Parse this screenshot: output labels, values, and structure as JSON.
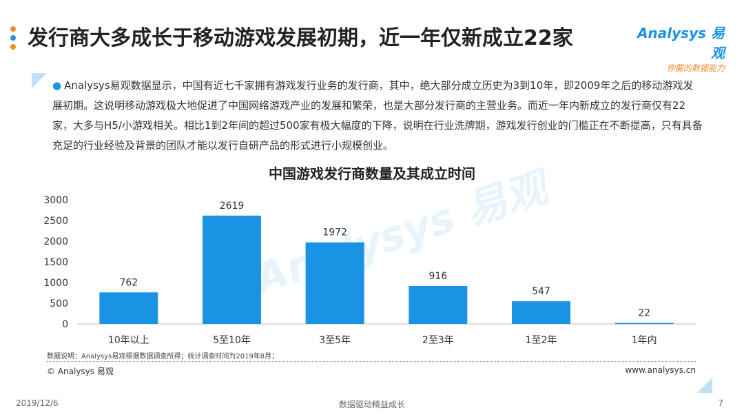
{
  "header": {
    "title": "发行商大多成长于移动游戏发展初期，近一年仅新成立22家",
    "logo_brand": "Analysys 易观",
    "logo_slogan": "你要的数据能力"
  },
  "description": "Analysys易观数据显示，中国有近七千家拥有游戏发行业务的发行商，其中，绝大部分成立历史为3到10年，即2009年之后的移动游戏发展初期。这说明移动游戏极大地促进了中国网络游戏产业的发展和繁荣，也是大部分发行商的主营业务。而近一年内新成立的发行商仅有22家，大多与H5/小游戏相关。相比1到2年间的超过500家有极大幅度的下降，说明在行业洗牌期，游戏发行创业的门槛正在不断提高，只有具备充足的行业经验及背景的团队才能以发行自研产品的形式进行小规模创业。",
  "chart_data": {
    "type": "bar",
    "title": "中国游戏发行商数量及其成立时间",
    "categories": [
      "10年以上",
      "5至10年",
      "3至5年",
      "2至3年",
      "1至2年",
      "1年内"
    ],
    "values": [
      762,
      2619,
      1972,
      916,
      547,
      22
    ],
    "yticks": [
      0,
      500,
      1000,
      1500,
      2000,
      2500,
      3000
    ],
    "ylim": [
      0,
      3000
    ],
    "color": "#1a93e5",
    "grid": false
  },
  "note": "数据说明：Analysys易观根据数据调查所得；统计调查时间为2019年8月；",
  "copyright": "© Analysys 易观",
  "website": "www.analysys.cn",
  "footer": {
    "date": "2019/12/6",
    "center": "数据驱动精益成长",
    "page": "7"
  },
  "colors": {
    "accent": "#1a93e5",
    "dot1": "#f08c2a",
    "dot2": "#1a93e5",
    "dot3": "#f08c2a"
  }
}
